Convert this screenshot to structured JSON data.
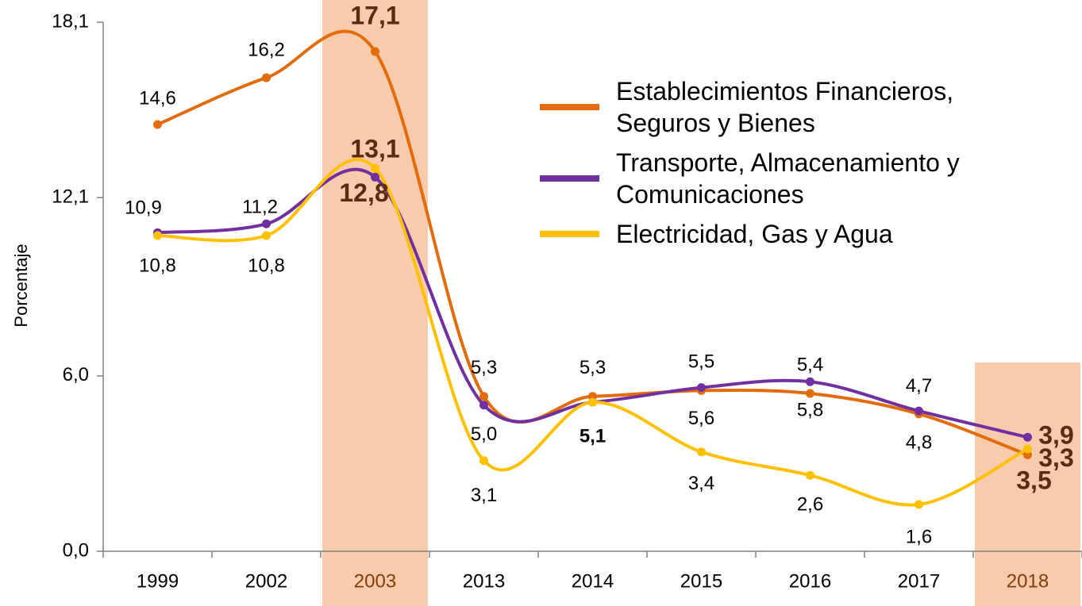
{
  "chart_data": {
    "type": "line",
    "y_label": "Porcentaje",
    "categories": [
      "1999",
      "2002",
      "2003",
      "2013",
      "2014",
      "2015",
      "2016",
      "2017",
      "2018"
    ],
    "highlight": [
      2,
      8
    ],
    "series": [
      {
        "name": "Establecimientos Financieros, Seguros y Bienes",
        "color": "#E36C0A",
        "values": [
          14.6,
          16.2,
          17.1,
          5.3,
          5.3,
          5.5,
          5.4,
          4.7,
          3.3
        ],
        "value_labels": [
          "14,6",
          "16,2",
          "17,1",
          "5,3",
          "5,3",
          "5,5",
          "5,4",
          "4,7",
          "3,3"
        ]
      },
      {
        "name": "Transporte, Almacenamiento y Comunicaciones",
        "color": "#7030A0",
        "values": [
          10.9,
          11.2,
          12.8,
          5.0,
          5.1,
          5.6,
          5.8,
          4.8,
          3.9
        ],
        "value_labels": [
          "10,9",
          "11,2",
          "12,8",
          "5,0",
          "5,1",
          "5,6",
          "5,8",
          "4,8",
          "3,9"
        ]
      },
      {
        "name": "Electricidad, Gas y Agua",
        "color": "#FFC000",
        "values": [
          10.8,
          10.8,
          13.1,
          3.1,
          5.1,
          3.4,
          2.6,
          1.6,
          3.5
        ],
        "value_labels": [
          "10,8",
          "10,8",
          "13,1",
          "3,1",
          null,
          "3,4",
          "2,6",
          "1,6",
          "3,5"
        ]
      }
    ],
    "ylim": [
      0,
      18.1
    ],
    "yticks": [
      {
        "value": 0,
        "label": "0,0"
      },
      {
        "value": 6.0,
        "label": "6,0"
      },
      {
        "value": 12.1,
        "label": "12,1"
      },
      {
        "value": 18.1,
        "label": "18,1"
      }
    ]
  }
}
